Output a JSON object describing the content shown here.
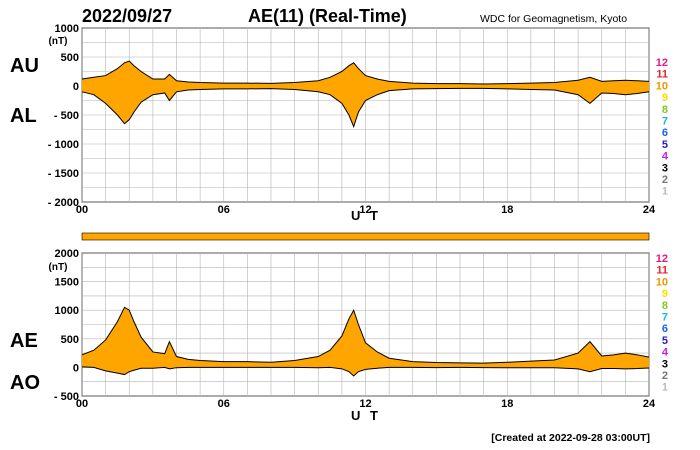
{
  "header": {
    "date": "2022/09/27",
    "title": "AE(11) (Real-Time)",
    "source": "WDC for Geomagnetism, Kyoto"
  },
  "footer": {
    "created": "[Created at 2022-09-28 03:00UT]"
  },
  "colors": {
    "fill": "#FFA500",
    "line": "#000000",
    "grid": "#b4b4b4"
  },
  "station_numbers": [
    {
      "label": "12",
      "color": "#e8177b"
    },
    {
      "label": "11",
      "color": "#e8212c"
    },
    {
      "label": "10",
      "color": "#f29400"
    },
    {
      "label": "9",
      "color": "#f2e600"
    },
    {
      "label": "8",
      "color": "#8ac41c"
    },
    {
      "label": "7",
      "color": "#19b9d6"
    },
    {
      "label": "6",
      "color": "#1b64e8"
    },
    {
      "label": "5",
      "color": "#2a1fb8"
    },
    {
      "label": "4",
      "color": "#c81ee0"
    },
    {
      "label": "3",
      "color": "#000000"
    },
    {
      "label": "2",
      "color": "#777777"
    },
    {
      "label": "1",
      "color": "#bbbbbb"
    }
  ],
  "chart_data": [
    {
      "type": "area",
      "labels_left": [
        "AU",
        "AL"
      ],
      "unit": "(nT)",
      "xlabel": "U T",
      "xlim": [
        0,
        24
      ],
      "xticks": [
        0,
        6,
        12,
        18,
        24
      ],
      "xtick_labels": [
        "00",
        "06",
        "12",
        "18",
        "24"
      ],
      "ylim": [
        -2000,
        1000
      ],
      "yticks": [
        1000,
        500,
        0,
        -500,
        -1000,
        -1500,
        -2000
      ],
      "ytick_labels": [
        "1000",
        "500",
        "0",
        "- 500",
        "- 1000",
        "- 1500",
        "- 2000"
      ],
      "x": [
        0,
        0.5,
        1,
        1.5,
        1.8,
        2,
        2.2,
        2.5,
        3,
        3.5,
        3.7,
        4,
        4.5,
        5,
        6,
        7,
        8,
        9,
        10,
        10.5,
        11,
        11.3,
        11.5,
        11.7,
        12,
        12.5,
        13,
        14,
        15,
        16,
        17,
        18,
        19,
        20,
        21,
        21.5,
        22,
        22.5,
        23,
        23.5,
        24
      ],
      "series": [
        {
          "name": "AU",
          "values": [
            120,
            150,
            180,
            300,
            400,
            430,
            350,
            250,
            120,
            120,
            200,
            90,
            70,
            60,
            50,
            50,
            45,
            60,
            90,
            150,
            250,
            350,
            400,
            300,
            180,
            120,
            80,
            50,
            40,
            40,
            35,
            40,
            50,
            60,
            100,
            150,
            80,
            90,
            100,
            90,
            80
          ]
        },
        {
          "name": "AL",
          "values": [
            -100,
            -150,
            -300,
            -500,
            -650,
            -580,
            -450,
            -280,
            -150,
            -120,
            -250,
            -100,
            -70,
            -60,
            -50,
            -50,
            -45,
            -60,
            -100,
            -150,
            -300,
            -500,
            -700,
            -450,
            -250,
            -150,
            -80,
            -50,
            -45,
            -40,
            -40,
            -50,
            -60,
            -70,
            -150,
            -300,
            -120,
            -130,
            -150,
            -130,
            -100
          ]
        }
      ]
    },
    {
      "type": "area",
      "labels_left": [
        "AE",
        "AO"
      ],
      "unit": "(nT)",
      "xlabel": "U T",
      "xlim": [
        0,
        24
      ],
      "xticks": [
        0,
        6,
        12,
        18,
        24
      ],
      "xtick_labels": [
        "00",
        "06",
        "12",
        "18",
        "24"
      ],
      "ylim": [
        -500,
        2000
      ],
      "yticks": [
        2000,
        1500,
        1000,
        500,
        0,
        -500
      ],
      "ytick_labels": [
        "2000",
        "1500",
        "1000",
        "500",
        "0",
        "- 500"
      ],
      "x": [
        0,
        0.5,
        1,
        1.5,
        1.8,
        2,
        2.2,
        2.5,
        3,
        3.5,
        3.7,
        4,
        4.5,
        5,
        6,
        7,
        8,
        9,
        10,
        10.5,
        11,
        11.3,
        11.5,
        11.7,
        12,
        12.5,
        13,
        14,
        15,
        16,
        17,
        18,
        19,
        20,
        21,
        21.5,
        22,
        22.5,
        23,
        23.5,
        24
      ],
      "series": [
        {
          "name": "AE",
          "values": [
            220,
            300,
            480,
            800,
            1050,
            1000,
            800,
            530,
            270,
            240,
            450,
            190,
            140,
            120,
            100,
            100,
            90,
            120,
            190,
            300,
            550,
            850,
            1000,
            750,
            430,
            270,
            160,
            100,
            85,
            80,
            75,
            90,
            110,
            130,
            250,
            450,
            200,
            220,
            250,
            220,
            180
          ]
        },
        {
          "name": "AO",
          "values": [
            10,
            0,
            -60,
            -100,
            -125,
            -75,
            -50,
            -15,
            -15,
            0,
            -25,
            -5,
            0,
            0,
            0,
            0,
            0,
            0,
            -5,
            0,
            -25,
            -75,
            -150,
            -75,
            -35,
            -15,
            0,
            0,
            -3,
            0,
            -3,
            -5,
            -5,
            -5,
            -25,
            -75,
            -20,
            -20,
            -25,
            -20,
            -10
          ]
        }
      ]
    }
  ]
}
